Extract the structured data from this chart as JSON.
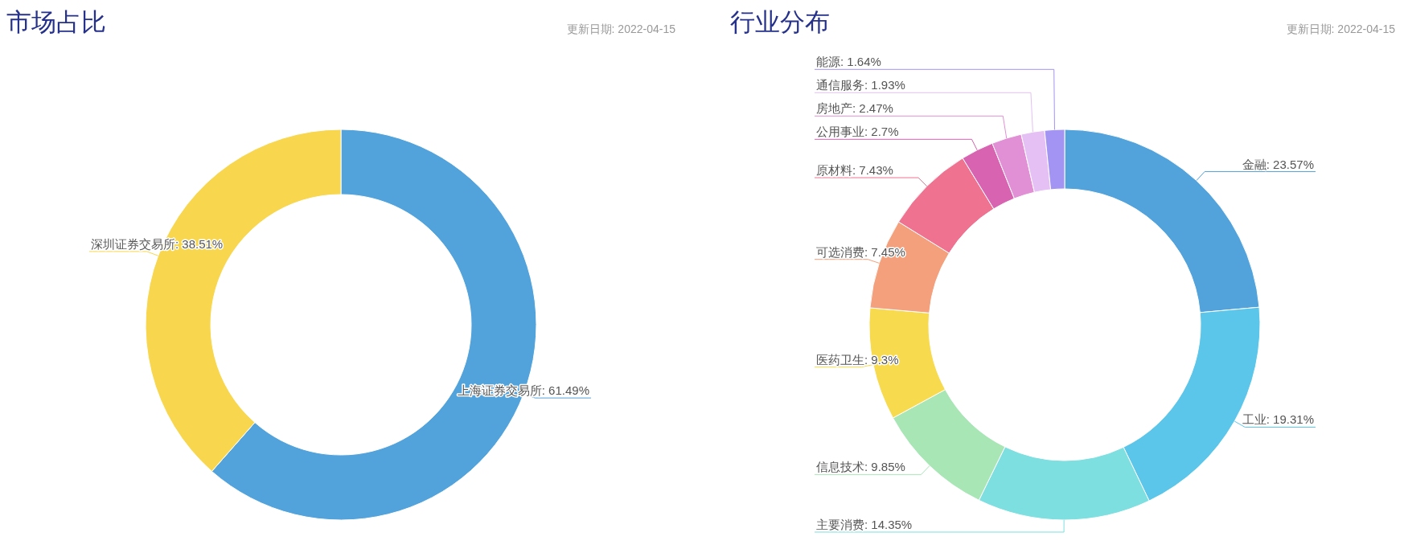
{
  "chart_data": [
    {
      "type": "donut",
      "title": "市场占比",
      "subtitle": "更新日期: 2022-04-15",
      "categories": [
        "上海证券交易所",
        "深圳证券交易所"
      ],
      "values": [
        61.49,
        38.51
      ],
      "value_labels": [
        "61.49%",
        "38.51%"
      ],
      "colors": [
        "#52a2dc",
        "#f8d74e"
      ]
    },
    {
      "type": "donut",
      "title": "行业分布",
      "subtitle": "更新日期: 2022-04-15",
      "categories": [
        "金融",
        "工业",
        "主要消费",
        "信息技术",
        "医药卫生",
        "可选消费",
        "原材料",
        "公用事业",
        "房地产",
        "通信服务",
        "能源"
      ],
      "values": [
        23.57,
        19.31,
        14.35,
        9.85,
        9.3,
        7.45,
        7.43,
        2.7,
        2.47,
        1.93,
        1.64
      ],
      "value_labels": [
        "23.57%",
        "19.31%",
        "14.35%",
        "9.85%",
        "9.3%",
        "7.45%",
        "7.43%",
        "2.7%",
        "2.47%",
        "1.93%",
        "1.64%"
      ],
      "colors": [
        "#52a2dc",
        "#5bc6ea",
        "#7edfe0",
        "#a8e6b6",
        "#f8da4e",
        "#f4a07c",
        "#ef7290",
        "#d763b1",
        "#e290d5",
        "#e5c0f5",
        "#a394f4"
      ]
    }
  ]
}
